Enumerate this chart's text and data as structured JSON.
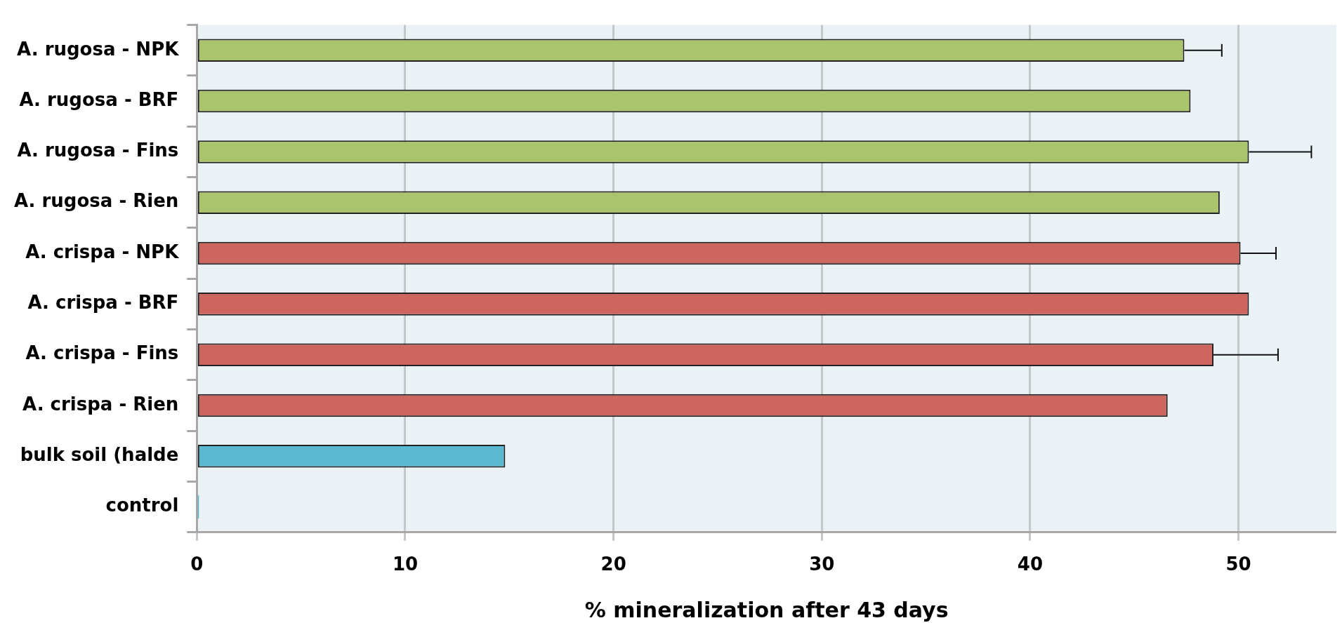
{
  "chart_data": {
    "type": "bar",
    "orientation": "horizontal",
    "xlabel": "% mineralization after 43 days",
    "categories": [
      "A. rugosa - NPK",
      "A. rugosa - BRF",
      "A. rugosa - Fins",
      "A. rugosa - Rien",
      "A. crispa - NPK",
      "A. crispa - BRF",
      "A. crispa - Fins",
      "A. crispa - Rien",
      "bulk soil (halde",
      "control"
    ],
    "values": [
      47.4,
      47.7,
      50.5,
      49.1,
      50.1,
      50.5,
      48.8,
      46.6,
      14.8,
      0.1
    ],
    "colors": [
      "#a9c46c",
      "#a9c46c",
      "#a9c46c",
      "#a9c46c",
      "#cd665f",
      "#cd665f",
      "#cd665f",
      "#cd665f",
      "#5bb8d1",
      "#5bb8d1"
    ],
    "errors": [
      [
        47.4,
        49.2
      ],
      null,
      [
        50.5,
        53.5
      ],
      null,
      [
        50.1,
        51.8
      ],
      null,
      [
        48.8,
        51.9
      ],
      null,
      null,
      null
    ],
    "xlim": [
      0,
      54.7
    ],
    "xticks": [
      0,
      10,
      20,
      30,
      40,
      50
    ],
    "grid": "x",
    "legend": false
  }
}
